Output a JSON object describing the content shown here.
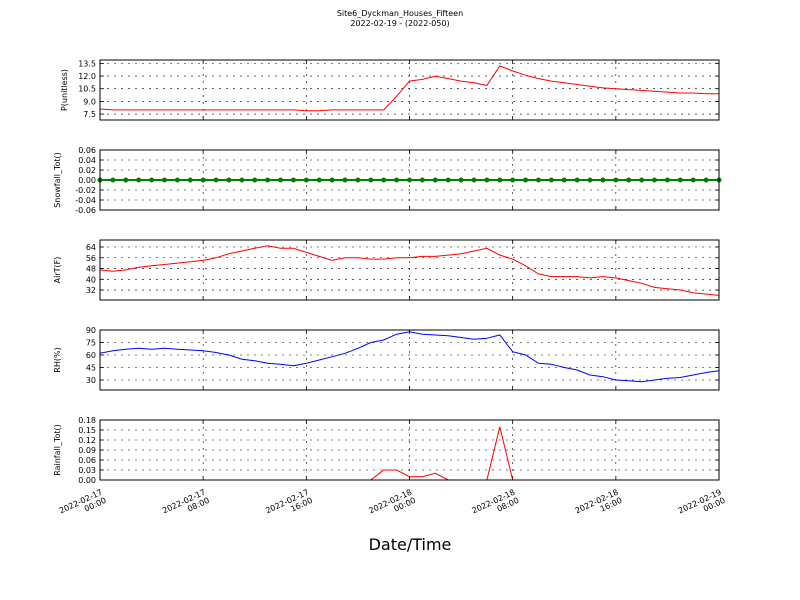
{
  "title": "Site6_Dyckman_Houses_Fifteen",
  "subtitle": "2022-02-19 - (2022-050)",
  "xlabel": "Date/Time",
  "x": [
    "2022-02-17 00:00",
    "2022-02-17 01:00",
    "2022-02-17 02:00",
    "2022-02-17 03:00",
    "2022-02-17 04:00",
    "2022-02-17 05:00",
    "2022-02-17 06:00",
    "2022-02-17 07:00",
    "2022-02-17 08:00",
    "2022-02-17 09:00",
    "2022-02-17 10:00",
    "2022-02-17 11:00",
    "2022-02-17 12:00",
    "2022-02-17 13:00",
    "2022-02-17 14:00",
    "2022-02-17 15:00",
    "2022-02-17 16:00",
    "2022-02-17 17:00",
    "2022-02-17 18:00",
    "2022-02-17 19:00",
    "2022-02-17 20:00",
    "2022-02-17 21:00",
    "2022-02-17 22:00",
    "2022-02-17 23:00",
    "2022-02-18 00:00",
    "2022-02-18 01:00",
    "2022-02-18 02:00",
    "2022-02-18 03:00",
    "2022-02-18 04:00",
    "2022-02-18 05:00",
    "2022-02-18 06:00",
    "2022-02-18 07:00",
    "2022-02-18 08:00",
    "2022-02-18 09:00",
    "2022-02-18 10:00",
    "2022-02-18 11:00",
    "2022-02-18 12:00",
    "2022-02-18 13:00",
    "2022-02-18 14:00",
    "2022-02-18 15:00",
    "2022-02-18 16:00",
    "2022-02-18 17:00",
    "2022-02-18 18:00",
    "2022-02-18 19:00",
    "2022-02-18 20:00",
    "2022-02-18 21:00",
    "2022-02-18 22:00",
    "2022-02-18 23:00",
    "2022-02-19 00:00"
  ],
  "xlim": [
    "2022-02-17 00:00",
    "2022-02-19 00:00"
  ],
  "xticks": [
    "2022-02-17 00:00",
    "2022-02-17 08:00",
    "2022-02-17 16:00",
    "2022-02-18 00:00",
    "2022-02-18 08:00",
    "2022-02-18 16:00",
    "2022-02-19 00:00"
  ],
  "chart_data": [
    {
      "type": "line",
      "ylabel": "P(unitless)",
      "ylim": [
        6.8,
        13.9
      ],
      "grid": true,
      "yticks": [
        7.5,
        {
          "value": 9,
          "label": "9.0"
        },
        10.5,
        {
          "value": 12,
          "label": "12.0"
        },
        13.5
      ],
      "series": [
        {
          "name": "P",
          "color": "#ff0000",
          "values": [
            8.1,
            8.0,
            8.0,
            8.0,
            8.0,
            8.0,
            8.0,
            8.0,
            8.0,
            8.0,
            8.0,
            8.0,
            8.0,
            8.0,
            8.0,
            8.0,
            7.9,
            7.9,
            8.0,
            8.0,
            8.0,
            8.0,
            8.0,
            9.6,
            11.4,
            11.6,
            12.0,
            11.7,
            11.4,
            11.2,
            10.9,
            13.2,
            12.6,
            12.1,
            11.7,
            11.4,
            11.2,
            11.0,
            10.8,
            10.6,
            10.5,
            10.4,
            10.3,
            10.2,
            10.1,
            10.0,
            10.0,
            9.9,
            9.9
          ]
        }
      ]
    },
    {
      "type": "line",
      "ylabel": "Snowfall_Tot()",
      "ylim": [
        -0.06,
        0.06
      ],
      "grid": true,
      "markers": true,
      "yticks": [
        -0.06,
        -0.04,
        -0.02,
        {
          "value": 0,
          "label": "0.00"
        },
        0.02,
        0.04,
        0.06
      ],
      "series": [
        {
          "name": "Snowfall_Tot",
          "color": "#008000",
          "values": [
            0,
            0,
            0,
            0,
            0,
            0,
            0,
            0,
            0,
            0,
            0,
            0,
            0,
            0,
            0,
            0,
            0,
            0,
            0,
            0,
            0,
            0,
            0,
            0,
            0,
            0,
            0,
            0,
            0,
            0,
            0,
            0,
            0,
            0,
            0,
            0,
            0,
            0,
            0,
            0,
            0,
            0,
            0,
            0,
            0,
            0,
            0,
            0,
            0
          ]
        }
      ]
    },
    {
      "type": "line",
      "ylabel": "AirT(F)",
      "ylim": [
        24.6,
        69.2
      ],
      "grid": true,
      "yticks": [
        32,
        40,
        48,
        56,
        64
      ],
      "series": [
        {
          "name": "AirT",
          "color": "#ff0000",
          "values": [
            47,
            46,
            47,
            49,
            50,
            51,
            52,
            53,
            54,
            56,
            59,
            61,
            63,
            65,
            63,
            63,
            60,
            57,
            54,
            56,
            56,
            55,
            55,
            56,
            56,
            57,
            57,
            58,
            59,
            61,
            63,
            58,
            55,
            50,
            44,
            42,
            42,
            42,
            41,
            42,
            41,
            39,
            37,
            34,
            33,
            32,
            30,
            29,
            28
          ]
        }
      ]
    },
    {
      "type": "line",
      "ylabel": "RH(%)",
      "ylim": [
        18,
        90
      ],
      "grid": true,
      "yticks": [
        30,
        45,
        60,
        75,
        90
      ],
      "series": [
        {
          "name": "RH",
          "color": "#0000ff",
          "values": [
            62,
            65,
            67,
            68,
            67,
            68,
            67,
            66,
            65,
            63,
            60,
            55,
            53,
            50,
            49,
            47,
            50,
            54,
            58,
            62,
            68,
            75,
            78,
            85,
            88,
            85,
            84,
            83,
            81,
            79,
            80,
            84,
            64,
            60,
            50,
            49,
            45,
            42,
            36,
            34,
            30,
            29,
            28,
            30,
            32,
            33,
            36,
            39,
            41
          ]
        }
      ]
    },
    {
      "type": "line",
      "ylabel": "Rainfall_Tot()",
      "ylim": [
        0,
        0.18
      ],
      "grid": true,
      "yticks": [
        {
          "value": 0,
          "label": "0.00"
        },
        0.03,
        0.06,
        0.09,
        0.12,
        0.15,
        0.18
      ],
      "series": [
        {
          "name": "Rainfall_Tot",
          "color": "#ff0000",
          "values": [
            0,
            0,
            0,
            0,
            0,
            0,
            0,
            0,
            0,
            0,
            0,
            0,
            0,
            0,
            0,
            0,
            0,
            0,
            0,
            0,
            0,
            0,
            0.03,
            0.03,
            0.01,
            0.01,
            0.02,
            0,
            0,
            0,
            0,
            0.16,
            0,
            0,
            0,
            0,
            0,
            0,
            0,
            0,
            0,
            0,
            0,
            0,
            0,
            0,
            0,
            0,
            0
          ]
        }
      ]
    }
  ]
}
